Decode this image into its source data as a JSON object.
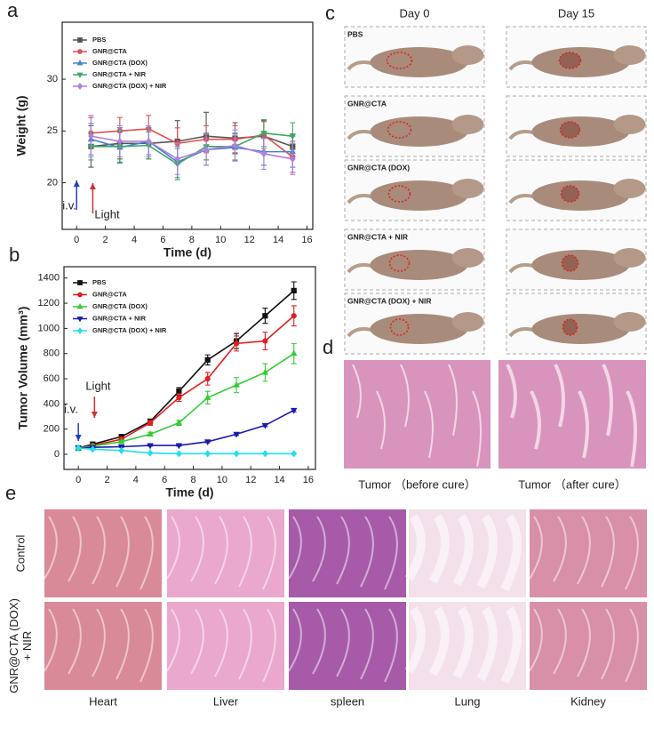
{
  "chart_data": [
    {
      "type": "line",
      "panel_label": "a",
      "xlabel": "Time (d)",
      "ylabel": "Weight  (g)",
      "x": [
        1,
        3,
        5,
        7,
        9,
        11,
        13,
        15
      ],
      "xlim": [
        -1,
        16.4
      ],
      "xticks": [
        0,
        2,
        4,
        6,
        8,
        10,
        12,
        14,
        16
      ],
      "ylim": [
        15.5,
        35.5
      ],
      "yticks": [
        20,
        25,
        30
      ],
      "legend": "upper left",
      "series": [
        {
          "name": "PBS",
          "color": "#555555",
          "marker": "square",
          "values": [
            23.5,
            23.8,
            23.8,
            24.0,
            24.5,
            24.3,
            24.5,
            23.5
          ],
          "errors": [
            2.0,
            1.5,
            1.5,
            2.0,
            2.3,
            1.5,
            1.5,
            1.2
          ]
        },
        {
          "name": "GNR@CTA",
          "color": "#e05050",
          "marker": "circle",
          "values": [
            24.8,
            25.0,
            25.2,
            23.8,
            24.2,
            24.2,
            24.6,
            22.5
          ],
          "errors": [
            1.5,
            1.3,
            1.3,
            1.5,
            1.3,
            1.3,
            1.3,
            1.5
          ]
        },
        {
          "name": "GNR@CTA (DOX)",
          "color": "#4a7fd0",
          "marker": "triangle-up",
          "values": [
            24.2,
            23.4,
            24.0,
            22.0,
            23.2,
            23.4,
            23.0,
            23.0
          ],
          "errors": [
            1.5,
            1.5,
            1.3,
            1.5,
            1.5,
            1.3,
            1.3,
            1.5
          ]
        },
        {
          "name": "GNR@CTA + NIR",
          "color": "#3aa860",
          "marker": "triangle-down",
          "values": [
            23.5,
            23.5,
            23.6,
            21.8,
            23.5,
            23.5,
            24.8,
            24.5
          ],
          "errors": [
            1.3,
            1.5,
            1.3,
            1.5,
            1.3,
            1.3,
            1.3,
            1.3
          ]
        },
        {
          "name": "GNR@CTA (DOX) + NIR",
          "color": "#b07fe0",
          "marker": "diamond",
          "values": [
            24.5,
            24.0,
            24.0,
            22.3,
            23.2,
            23.6,
            22.8,
            22.3
          ],
          "errors": [
            2.0,
            1.5,
            1.5,
            1.5,
            1.5,
            1.5,
            1.5,
            1.5
          ]
        }
      ],
      "annotations": [
        {
          "text": "i.v.",
          "x": 0,
          "color": "#1f3fbf"
        },
        {
          "text": "Light",
          "x": 1,
          "color": "#d03030"
        }
      ]
    },
    {
      "type": "line",
      "panel_label": "b",
      "xlabel": "Time (d)",
      "ylabel": "Tumor Volume (mm³)",
      "x": [
        0,
        1,
        3,
        5,
        7,
        9,
        11,
        13,
        15
      ],
      "xlim": [
        -1,
        16.5
      ],
      "xticks": [
        0,
        2,
        4,
        6,
        8,
        10,
        12,
        14,
        16
      ],
      "ylim": [
        -120,
        1490
      ],
      "yticks": [
        0,
        200,
        400,
        600,
        800,
        1000,
        1200,
        1400
      ],
      "legend": "upper left",
      "series": [
        {
          "name": "PBS",
          "color": "#111111",
          "marker": "square",
          "values": [
            50,
            80,
            140,
            260,
            500,
            750,
            900,
            1100,
            1300
          ],
          "errors": [
            10,
            10,
            15,
            20,
            30,
            40,
            60,
            60,
            70
          ]
        },
        {
          "name": "GNR@CTA",
          "color": "#e02020",
          "marker": "circle",
          "values": [
            50,
            70,
            120,
            250,
            450,
            600,
            880,
            900,
            1100
          ],
          "errors": [
            10,
            10,
            15,
            20,
            30,
            50,
            60,
            70,
            80
          ]
        },
        {
          "name": "GNR@CTA (DOX)",
          "color": "#33cc33",
          "marker": "triangle-up",
          "values": [
            50,
            65,
            100,
            160,
            250,
            450,
            550,
            650,
            800
          ],
          "errors": [
            10,
            10,
            10,
            15,
            20,
            50,
            60,
            70,
            80
          ]
        },
        {
          "name": "GNR@CTA + NIR",
          "color": "#1a1ab0",
          "marker": "triangle-down",
          "values": [
            50,
            55,
            60,
            70,
            70,
            100,
            160,
            230,
            350
          ],
          "errors": [
            5,
            5,
            5,
            5,
            5,
            8,
            10,
            10,
            12
          ]
        },
        {
          "name": "GNR@CTA (DOX) + NIR",
          "color": "#22ddee",
          "marker": "diamond",
          "values": [
            50,
            40,
            30,
            10,
            5,
            5,
            5,
            5,
            5
          ],
          "errors": [
            5,
            5,
            5,
            3,
            3,
            3,
            3,
            3,
            3
          ]
        }
      ],
      "annotations": [
        {
          "text": "i.v.",
          "x": 0,
          "color": "#1f3fbf"
        },
        {
          "text": "Light",
          "x": 1,
          "color": "#d03030"
        }
      ]
    }
  ],
  "panel_c": {
    "label": "c",
    "columns": [
      "Day 0",
      "Day 15"
    ],
    "rows": [
      "PBS",
      "GNR@CTA",
      "GNR@CTA (DOX)",
      "GNR@CTA + NIR",
      "GNR@CTA (DOX) + NIR"
    ]
  },
  "panel_d": {
    "label": "d",
    "captions": [
      "Tumor （before cure）",
      "Tumor （after cure）"
    ]
  },
  "panel_e": {
    "label": "e",
    "rows": [
      [
        "Control"
      ],
      [
        "GNR@CTA (DOX)",
        "+ NIR"
      ]
    ],
    "columns": [
      "Heart",
      "Liver",
      "spleen",
      "Lung",
      "Kidney"
    ]
  }
}
